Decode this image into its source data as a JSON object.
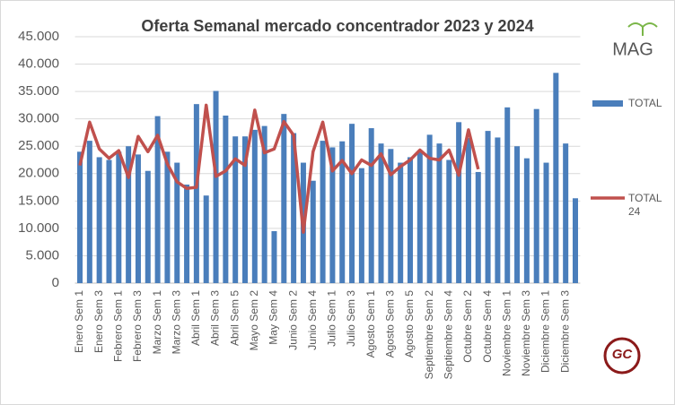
{
  "chart_data": {
    "type": "bar_line",
    "title": "Oferta Semanal mercado concentrador  2023 y 2024",
    "logo_text": "MAG",
    "badge_text": "GC",
    "categories": [
      "Enero Sem 1",
      null,
      "Enero Sem 3",
      null,
      "Febrero Sem 1",
      null,
      "Febrero Sem 3",
      null,
      "Marzo Sem 1",
      null,
      "Marzo Sem 3",
      null,
      "Abril Sem 1",
      null,
      "Abril Sem 3",
      null,
      "Abril Sem 5",
      null,
      "Mayo Sem 2",
      null,
      "May Sem 4",
      null,
      "Junio Sem 2",
      null,
      "Junio Sem 4",
      null,
      "Julio Sem 1",
      null,
      "Julio Sem 3",
      null,
      "Agosto Sem 1",
      null,
      "Agosto Sem 3",
      null,
      "Agosto Sem 5",
      null,
      "Septiembre Sem 2",
      null,
      "Septiembre Sem 4",
      null,
      "Octubre Sem 2",
      null,
      "Octubre Sem 4",
      null,
      "Noviembre Sem 1",
      null,
      "Noviembre Sem 3",
      null,
      "Diciembre Sem 1",
      null,
      "Diciembre Sem 3",
      null
    ],
    "series": [
      {
        "name": "TOTAL",
        "type": "bar",
        "color": "#4a7ebb",
        "values": [
          24000,
          26000,
          23000,
          22500,
          24000,
          25000,
          23500,
          20500,
          30500,
          24000,
          22000,
          18000,
          32700,
          16000,
          35100,
          30600,
          26800,
          26800,
          28000,
          28700,
          9500,
          30900,
          27400,
          22000,
          18700,
          26000,
          24800,
          25900,
          29100,
          21000,
          28300,
          25500,
          24500,
          22000,
          23000,
          24000,
          27100,
          25500,
          22500,
          29400,
          26500,
          20300,
          27800,
          26600,
          32100,
          25000,
          22800,
          31800,
          22000,
          38400,
          25500,
          15500
        ]
      },
      {
        "name": "TOTAL 24",
        "type": "line",
        "color": "#c0504d",
        "values": [
          21500,
          29400,
          24500,
          22800,
          24200,
          19300,
          26800,
          24000,
          27000,
          21800,
          18500,
          17300,
          17500,
          32500,
          19500,
          20500,
          22700,
          21500,
          31600,
          23800,
          24500,
          29500,
          27000,
          9300,
          24000,
          29400,
          20500,
          22400,
          20000,
          22500,
          21500,
          23600,
          19800,
          21300,
          22500,
          24300,
          22800,
          22500,
          24300,
          19700,
          28000,
          20800,
          null,
          null,
          null,
          null,
          null,
          null,
          null,
          null,
          null,
          null
        ]
      }
    ],
    "ylim": [
      0,
      45000
    ],
    "yticks": [
      0,
      {
        "value": 5000,
        "label": "5.000"
      },
      {
        "value": 10000,
        "label": "10.000"
      },
      {
        "value": 15000,
        "label": "15.000"
      },
      {
        "value": 20000,
        "label": "20.000"
      },
      {
        "value": 25000,
        "label": "25.000"
      },
      {
        "value": 30000,
        "label": "30.000"
      },
      {
        "value": 35000,
        "label": "35.000"
      },
      {
        "value": 40000,
        "label": "40.000"
      },
      {
        "value": 45000,
        "label": "45.000"
      }
    ],
    "grid": true,
    "legend": "right"
  }
}
